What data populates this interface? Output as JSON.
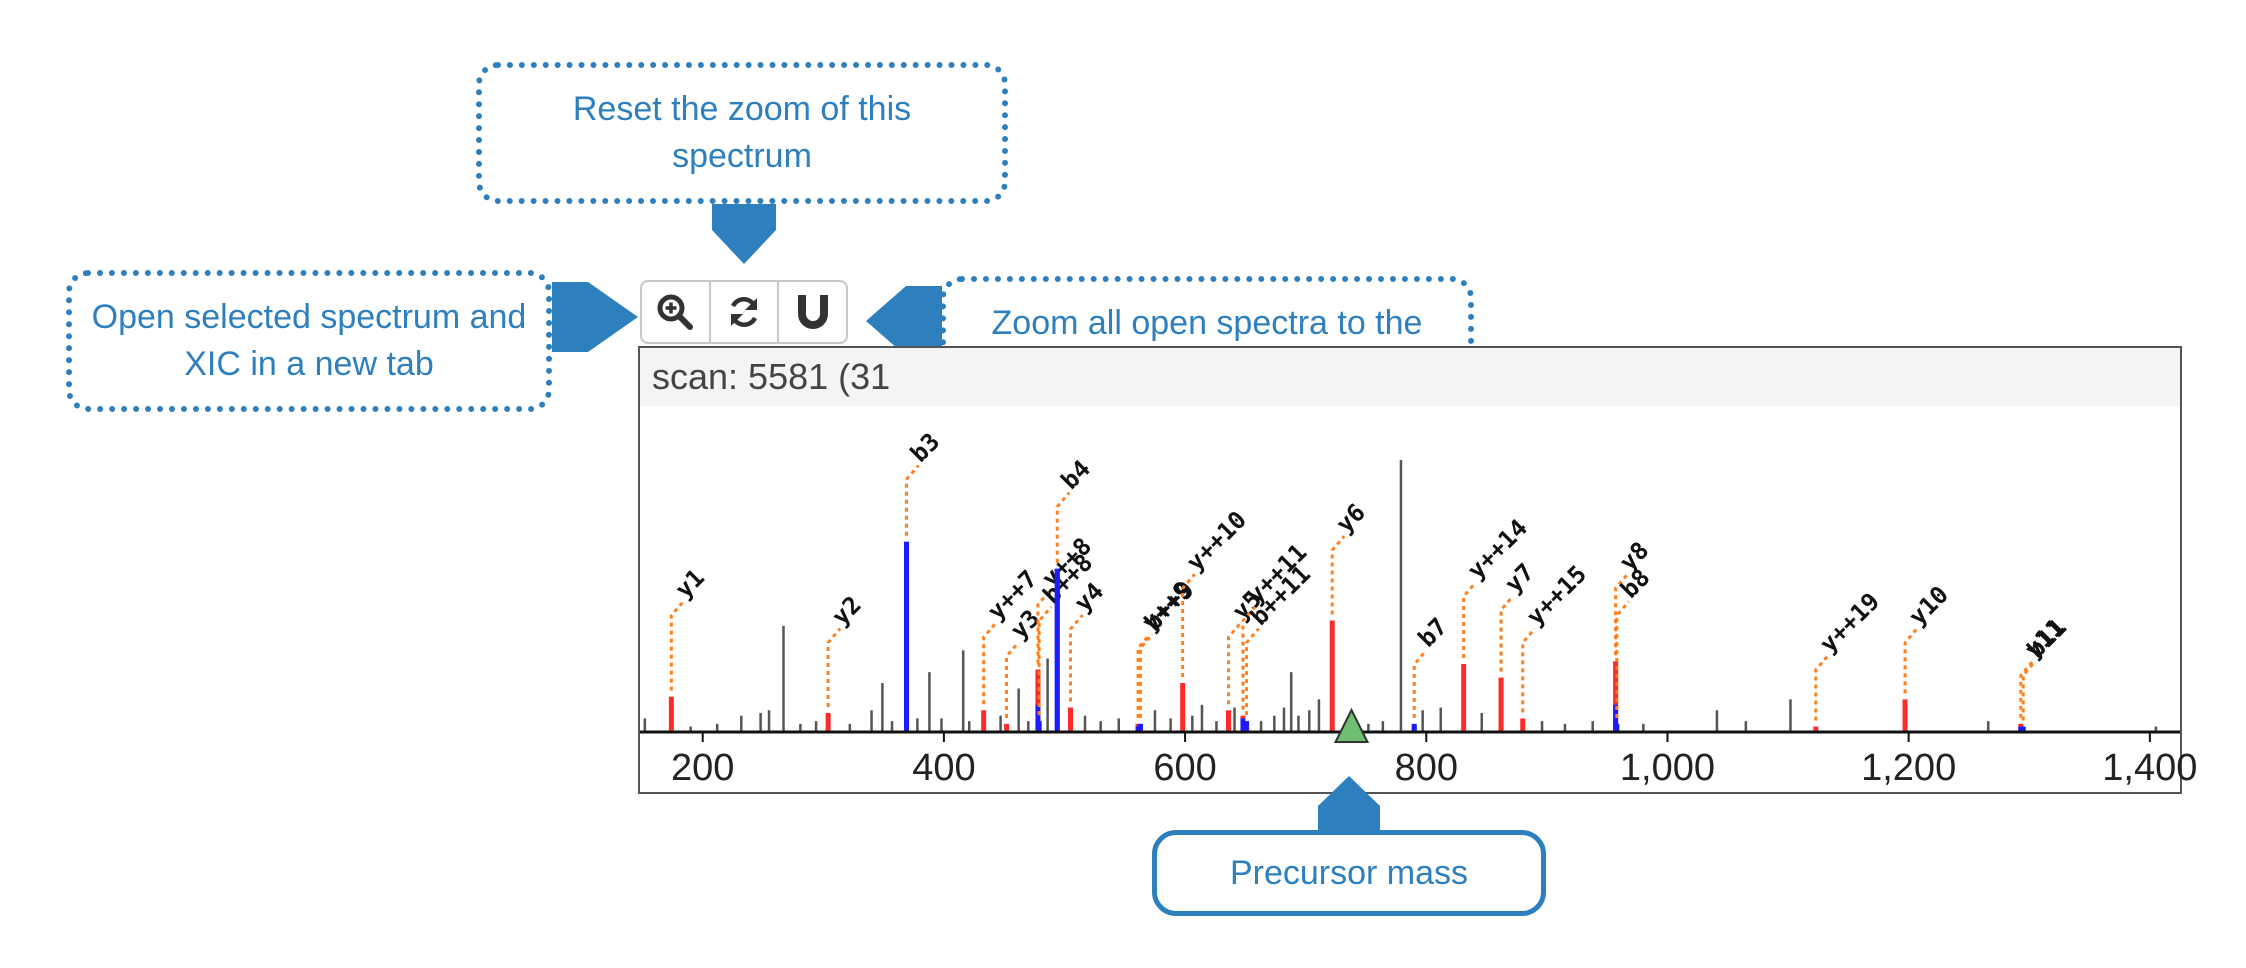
{
  "callouts": {
    "reset_zoom": "Reset the zoom of this spectrum",
    "open_spectrum": "Open selected spectrum and XIC in a new tab",
    "zoom_all": "Zoom all open spectra to the zoom-range of this one",
    "precursor": "Precursor mass"
  },
  "toolbar": {
    "buttons": [
      {
        "icon": "zoom-in-icon"
      },
      {
        "icon": "refresh-icon"
      },
      {
        "icon": "magnet-icon"
      }
    ]
  },
  "scan_label": "scan: 5581 (31",
  "colors": {
    "accent": "#2e7fbd",
    "y_ion": "#ff2a2a",
    "b_ion": "#1b1bff",
    "unannotated": "#555555",
    "label_line": "#ff7f1e",
    "precursor_marker": "#6fbf73"
  },
  "chart_data": {
    "type": "bar",
    "x_domain": [
      148,
      1425
    ],
    "y_domain": [
      0,
      100
    ],
    "xticks": [
      {
        "value": 200,
        "label": "200"
      },
      {
        "value": 400,
        "label": "400"
      },
      {
        "value": 600,
        "label": "600"
      },
      {
        "value": 800,
        "label": "800"
      },
      {
        "value": 1000,
        "label": "1,000"
      },
      {
        "value": 1200,
        "label": "1,200"
      },
      {
        "value": 1400,
        "label": "1,400"
      }
    ],
    "precursor_mz": 738,
    "annotated_peaks": [
      {
        "mz": 174,
        "intensity": 13,
        "b": 0,
        "label": "y1",
        "label_height": 48
      },
      {
        "mz": 304,
        "intensity": 7,
        "b": 0,
        "label": "y2",
        "label_height": 38
      },
      {
        "mz": 369,
        "intensity": 70,
        "b": 57,
        "label": "b3",
        "label_height": 98
      },
      {
        "mz": 433,
        "intensity": 8,
        "b": 0,
        "label": "y++7",
        "label_height": 40
      },
      {
        "mz": 452,
        "intensity": 3,
        "b": 0,
        "label": "y3",
        "label_height": 33
      },
      {
        "mz": 478,
        "intensity": 23,
        "b": 10,
        "label": "y++8",
        "label_height": 52
      },
      {
        "mz": 479,
        "intensity": 4,
        "b": 0,
        "label": "b++8",
        "label_height": 46
      },
      {
        "mz": 494,
        "intensity": 60,
        "b": 60,
        "label": "b4",
        "label_height": 88
      },
      {
        "mz": 505,
        "intensity": 9,
        "b": 0,
        "label": "y4",
        "label_height": 43
      },
      {
        "mz": 561,
        "intensity": 3,
        "b": 2,
        "label": "y++9",
        "label_height": 36
      },
      {
        "mz": 563,
        "intensity": 3,
        "b": 0,
        "label": "b++9",
        "label_height": 36
      },
      {
        "mz": 598,
        "intensity": 18,
        "b": 0,
        "label": "y++10",
        "label_height": 58
      },
      {
        "mz": 636,
        "intensity": 8,
        "b": 0,
        "label": "y5",
        "label_height": 40
      },
      {
        "mz": 648,
        "intensity": 6,
        "b": 5,
        "label": "y++11",
        "label_height": 46
      },
      {
        "mz": 651,
        "intensity": 4,
        "b": 0,
        "label": "b++11",
        "label_height": 38
      },
      {
        "mz": 722,
        "intensity": 41,
        "b": 0,
        "label": "y6",
        "label_height": 72
      },
      {
        "mz": 790,
        "intensity": 3,
        "b": 2,
        "label": "b7",
        "label_height": 30
      },
      {
        "mz": 831,
        "intensity": 25,
        "b": 0,
        "label": "y++14",
        "label_height": 55
      },
      {
        "mz": 862,
        "intensity": 20,
        "b": 0,
        "label": "y7",
        "label_height": 50
      },
      {
        "mz": 880,
        "intensity": 5,
        "b": 0,
        "label": "y++15",
        "label_height": 38
      },
      {
        "mz": 957,
        "intensity": 26,
        "b": 10,
        "label": "y8",
        "label_height": 58
      },
      {
        "mz": 958,
        "intensity": 3,
        "b": 0,
        "label": "b8",
        "label_height": 48
      },
      {
        "mz": 1123,
        "intensity": 2,
        "b": 0,
        "label": "y++19",
        "label_height": 28
      },
      {
        "mz": 1197,
        "intensity": 12,
        "b": 0,
        "label": "y10",
        "label_height": 38
      },
      {
        "mz": 1293,
        "intensity": 3,
        "b": 2,
        "label": "y11",
        "label_height": 26
      },
      {
        "mz": 1295,
        "intensity": 2,
        "b": 0,
        "label": "b11",
        "label_height": 26
      }
    ],
    "unannotated_peaks": [
      {
        "mz": 152,
        "intensity": 5
      },
      {
        "mz": 190,
        "intensity": 2
      },
      {
        "mz": 212,
        "intensity": 3
      },
      {
        "mz": 232,
        "intensity": 6
      },
      {
        "mz": 248,
        "intensity": 7
      },
      {
        "mz": 255,
        "intensity": 8
      },
      {
        "mz": 267,
        "intensity": 39
      },
      {
        "mz": 281,
        "intensity": 3
      },
      {
        "mz": 294,
        "intensity": 4
      },
      {
        "mz": 322,
        "intensity": 3
      },
      {
        "mz": 340,
        "intensity": 8
      },
      {
        "mz": 349,
        "intensity": 18
      },
      {
        "mz": 357,
        "intensity": 4
      },
      {
        "mz": 378,
        "intensity": 5
      },
      {
        "mz": 388,
        "intensity": 22
      },
      {
        "mz": 398,
        "intensity": 5
      },
      {
        "mz": 416,
        "intensity": 30
      },
      {
        "mz": 421,
        "intensity": 4
      },
      {
        "mz": 447,
        "intensity": 6
      },
      {
        "mz": 462,
        "intensity": 16
      },
      {
        "mz": 470,
        "intensity": 4
      },
      {
        "mz": 486,
        "intensity": 27
      },
      {
        "mz": 517,
        "intensity": 6
      },
      {
        "mz": 530,
        "intensity": 4
      },
      {
        "mz": 545,
        "intensity": 5
      },
      {
        "mz": 575,
        "intensity": 8
      },
      {
        "mz": 588,
        "intensity": 5
      },
      {
        "mz": 606,
        "intensity": 6
      },
      {
        "mz": 614,
        "intensity": 10
      },
      {
        "mz": 626,
        "intensity": 4
      },
      {
        "mz": 641,
        "intensity": 9
      },
      {
        "mz": 663,
        "intensity": 4
      },
      {
        "mz": 674,
        "intensity": 6
      },
      {
        "mz": 682,
        "intensity": 9
      },
      {
        "mz": 688,
        "intensity": 22
      },
      {
        "mz": 694,
        "intensity": 6
      },
      {
        "mz": 703,
        "intensity": 8
      },
      {
        "mz": 711,
        "intensity": 12
      },
      {
        "mz": 742,
        "intensity": 4
      },
      {
        "mz": 752,
        "intensity": 3
      },
      {
        "mz": 764,
        "intensity": 4
      },
      {
        "mz": 779,
        "intensity": 100
      },
      {
        "mz": 797,
        "intensity": 8
      },
      {
        "mz": 812,
        "intensity": 9
      },
      {
        "mz": 846,
        "intensity": 7
      },
      {
        "mz": 896,
        "intensity": 4
      },
      {
        "mz": 915,
        "intensity": 3
      },
      {
        "mz": 938,
        "intensity": 4
      },
      {
        "mz": 980,
        "intensity": 3
      },
      {
        "mz": 1041,
        "intensity": 8
      },
      {
        "mz": 1065,
        "intensity": 4
      },
      {
        "mz": 1102,
        "intensity": 12
      },
      {
        "mz": 1266,
        "intensity": 4
      },
      {
        "mz": 1405,
        "intensity": 2
      }
    ]
  }
}
